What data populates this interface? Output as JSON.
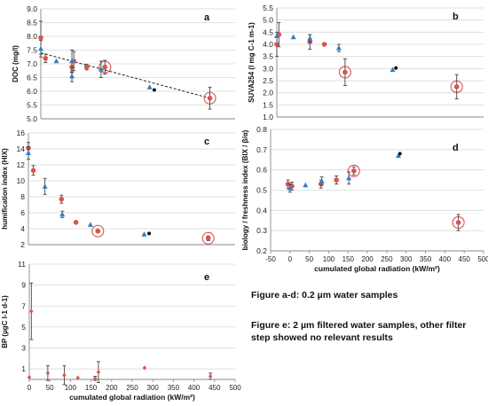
{
  "chart_data": [
    {
      "id": "a",
      "type": "scatter",
      "panel_label": "a",
      "ylabel": "DOC (mg/l)",
      "xlabel": "",
      "xlim": [
        0,
        500
      ],
      "ylim": [
        5,
        9
      ],
      "yticks": [
        5.0,
        5.5,
        6.0,
        6.5,
        7.0,
        7.5,
        8.0,
        8.5,
        9.0
      ],
      "ytick_labels": [
        "5.0",
        "5.5",
        "6.0",
        "6.5",
        "7.0",
        "7.5",
        "8.0",
        "8.5",
        "9.0"
      ],
      "xticks": [],
      "xtick_labels": [],
      "trendline": [
        [
          0,
          7.4
        ],
        [
          435,
          5.75
        ]
      ],
      "series": [
        {
          "marker": "circle",
          "color": "#d9534f",
          "points": [
            {
              "x": 0,
              "y": 7.95,
              "err": 0.6
            },
            {
              "x": 12,
              "y": 7.2,
              "err": 0.15
            },
            {
              "x": 80,
              "y": 6.88,
              "err": 0.2
            },
            {
              "x": 85,
              "y": 7.1,
              "err": 0.35
            },
            {
              "x": 118,
              "y": 6.88,
              "err": 0.1
            },
            {
              "x": 165,
              "y": 6.88,
              "err": 0.25
            },
            {
              "x": 435,
              "y": 5.75,
              "err": 0.4
            }
          ]
        },
        {
          "marker": "triangle",
          "color": "#2f7fc1",
          "points": [
            {
              "x": 0,
              "y": 7.55,
              "err": 0.3
            },
            {
              "x": 40,
              "y": 7.1,
              "err": 0
            },
            {
              "x": 80,
              "y": 6.55,
              "err": 0.2
            },
            {
              "x": 80,
              "y": 7.1,
              "err": 0.4
            },
            {
              "x": 155,
              "y": 6.8,
              "err": 0.3
            },
            {
              "x": 280,
              "y": 6.15,
              "err": 0
            }
          ]
        },
        {
          "marker": "dot",
          "color": "#111111",
          "points": [
            {
              "x": 292,
              "y": 6.05,
              "err": 0
            }
          ]
        }
      ],
      "highlights": [
        {
          "x": 165,
          "y": 6.88
        },
        {
          "x": 435,
          "y": 5.75
        }
      ]
    },
    {
      "id": "b",
      "type": "scatter",
      "panel_label": "b",
      "ylabel": "SUVA254 (l mg C-1 m-1)",
      "xlabel": "",
      "xlim": [
        0,
        500
      ],
      "ylim": [
        1,
        5.5
      ],
      "yticks": [
        1.0,
        1.5,
        2.0,
        2.5,
        3.0,
        3.5,
        4.0,
        4.5,
        5.0,
        5.5
      ],
      "ytick_labels": [
        "1.0",
        "1.5",
        "2.0",
        "2.5",
        "3.0",
        "3.5",
        "4.0",
        "4.5",
        "5.0",
        "5.5"
      ],
      "xticks": [],
      "xtick_labels": [],
      "series": [
        {
          "marker": "circle",
          "color": "#d9534f",
          "points": [
            {
              "x": 0,
              "y": 4.0,
              "err": 0.5
            },
            {
              "x": 5,
              "y": 4.4,
              "err": 0.5
            },
            {
              "x": 80,
              "y": 4.1,
              "err": 0.3
            },
            {
              "x": 115,
              "y": 4.0,
              "err": 0.05
            },
            {
              "x": 165,
              "y": 2.85,
              "err": 0.55
            },
            {
              "x": 435,
              "y": 2.25,
              "err": 0.5
            }
          ]
        },
        {
          "marker": "triangle",
          "color": "#2f7fc1",
          "points": [
            {
              "x": 0,
              "y": 4.35,
              "err": 0
            },
            {
              "x": 40,
              "y": 4.3,
              "err": 0
            },
            {
              "x": 80,
              "y": 4.25,
              "err": 0.15
            },
            {
              "x": 150,
              "y": 3.85,
              "err": 0.15
            },
            {
              "x": 280,
              "y": 2.95,
              "err": 0
            }
          ]
        },
        {
          "marker": "dot",
          "color": "#111111",
          "points": [
            {
              "x": 288,
              "y": 3.02,
              "err": 0
            }
          ]
        }
      ],
      "highlights": [
        {
          "x": 165,
          "y": 2.85
        },
        {
          "x": 435,
          "y": 2.25
        }
      ]
    },
    {
      "id": "c",
      "type": "scatter",
      "panel_label": "c",
      "ylabel": "humification index (HIX)",
      "xlabel": "",
      "xlim": [
        0,
        500
      ],
      "ylim": [
        2,
        16
      ],
      "yticks": [
        2,
        4,
        6,
        8,
        10,
        12,
        14,
        16
      ],
      "ytick_labels": [
        "2",
        "4",
        "6",
        "8",
        "10",
        "12",
        "14",
        "16"
      ],
      "xticks": [],
      "xtick_labels": [],
      "series": [
        {
          "marker": "circle",
          "color": "#d9534f",
          "points": [
            {
              "x": 0,
              "y": 14.1,
              "err": 0.7
            },
            {
              "x": 12,
              "y": 11.3,
              "err": 0.6
            },
            {
              "x": 80,
              "y": 7.7,
              "err": 0.5
            },
            {
              "x": 115,
              "y": 4.8,
              "err": 0
            },
            {
              "x": 168,
              "y": 3.7,
              "err": 0
            },
            {
              "x": 435,
              "y": 2.8,
              "err": 0.3
            }
          ]
        },
        {
          "marker": "triangle",
          "color": "#2f7fc1",
          "points": [
            {
              "x": 0,
              "y": 13.5,
              "err": 0.8
            },
            {
              "x": 40,
              "y": 9.3,
              "err": 1.0
            },
            {
              "x": 82,
              "y": 5.8,
              "err": 0.4
            },
            {
              "x": 150,
              "y": 4.5,
              "err": 0
            },
            {
              "x": 280,
              "y": 3.3,
              "err": 0
            }
          ]
        },
        {
          "marker": "dot",
          "color": "#111111",
          "points": [
            {
              "x": 292,
              "y": 3.4,
              "err": 0
            }
          ]
        }
      ],
      "highlights": [
        {
          "x": 168,
          "y": 3.7
        },
        {
          "x": 435,
          "y": 2.8
        }
      ]
    },
    {
      "id": "d",
      "type": "scatter",
      "panel_label": "d",
      "ylabel": "biology / freshness index (BIX / β/α)",
      "xlabel": "cumulated global radiation (kW/m²)",
      "xlim": [
        -50,
        500
      ],
      "ylim": [
        0.2,
        0.8
      ],
      "yticks": [
        0.2,
        0.3,
        0.4,
        0.5,
        0.6,
        0.7,
        0.8
      ],
      "ytick_labels": [
        "0.2",
        "0.3",
        "0.4",
        "0.5",
        "0.6",
        "0.7",
        "0.8"
      ],
      "xticks": [
        -50,
        0,
        50,
        100,
        150,
        200,
        250,
        300,
        350,
        400,
        450,
        500
      ],
      "xtick_labels": [
        "-50",
        "0",
        "50",
        "100",
        "150",
        "200",
        "250",
        "300",
        "350",
        "400",
        "450",
        "500"
      ],
      "series": [
        {
          "marker": "circle",
          "color": "#d9534f",
          "points": [
            {
              "x": -5,
              "y": 0.53,
              "err": 0.02
            },
            {
              "x": 5,
              "y": 0.52,
              "err": 0.02
            },
            {
              "x": 80,
              "y": 0.53,
              "err": 0.02
            },
            {
              "x": 120,
              "y": 0.55,
              "err": 0.02
            },
            {
              "x": 165,
              "y": 0.595,
              "err": 0.02
            },
            {
              "x": 435,
              "y": 0.34,
              "err": 0.04
            }
          ]
        },
        {
          "marker": "triangle",
          "color": "#2f7fc1",
          "points": [
            {
              "x": 0,
              "y": 0.51,
              "err": 0.02
            },
            {
              "x": 40,
              "y": 0.525,
              "err": 0
            },
            {
              "x": 82,
              "y": 0.545,
              "err": 0.02
            },
            {
              "x": 152,
              "y": 0.56,
              "err": 0.03
            },
            {
              "x": 280,
              "y": 0.67,
              "err": 0
            }
          ]
        },
        {
          "marker": "dot",
          "color": "#111111",
          "points": [
            {
              "x": 284,
              "y": 0.68,
              "err": 0
            }
          ]
        }
      ],
      "highlights": [
        {
          "x": 165,
          "y": 0.595
        },
        {
          "x": 435,
          "y": 0.34
        }
      ]
    },
    {
      "id": "e",
      "type": "scatter",
      "panel_label": "e",
      "ylabel": "BP (µgC l-1 d-1)",
      "xlabel": "cumulated global radiation (kW/m²)",
      "xlim": [
        0,
        500
      ],
      "ylim": [
        0,
        11
      ],
      "yticks": [
        1,
        3,
        5,
        7,
        9,
        11
      ],
      "ytick_labels": [
        "1",
        "3",
        "5",
        "7",
        "9",
        "11"
      ],
      "xticks": [
        0,
        50,
        100,
        150,
        200,
        250,
        300,
        350,
        400,
        450,
        500
      ],
      "xtick_labels": [
        "0",
        "50",
        "100",
        "150",
        "200",
        "250",
        "300",
        "350",
        "400",
        "450",
        "500"
      ],
      "series": [
        {
          "marker": "diamond",
          "color": "#d9534f",
          "points": [
            {
              "x": 0,
              "y": 0.2,
              "err": 0
            },
            {
              "x": 5,
              "y": 6.5,
              "err": 2.7
            },
            {
              "x": 45,
              "y": 0.6,
              "err": 0.7
            },
            {
              "x": 85,
              "y": 0.4,
              "err": 0.9
            },
            {
              "x": 118,
              "y": 0.15,
              "err": 0
            },
            {
              "x": 160,
              "y": 0.1,
              "err": 0.2
            },
            {
              "x": 168,
              "y": 0.7,
              "err": 1.0
            },
            {
              "x": 280,
              "y": 1.1,
              "err": 0
            },
            {
              "x": 440,
              "y": 0.3,
              "err": 0.3
            }
          ]
        }
      ],
      "highlights": []
    }
  ],
  "captions": {
    "caption_1": "Figure a-d: 0.2 µm water samples",
    "caption_2": "Figure e: 2 µm filtered water samples, other filter step showed no relevant results"
  }
}
